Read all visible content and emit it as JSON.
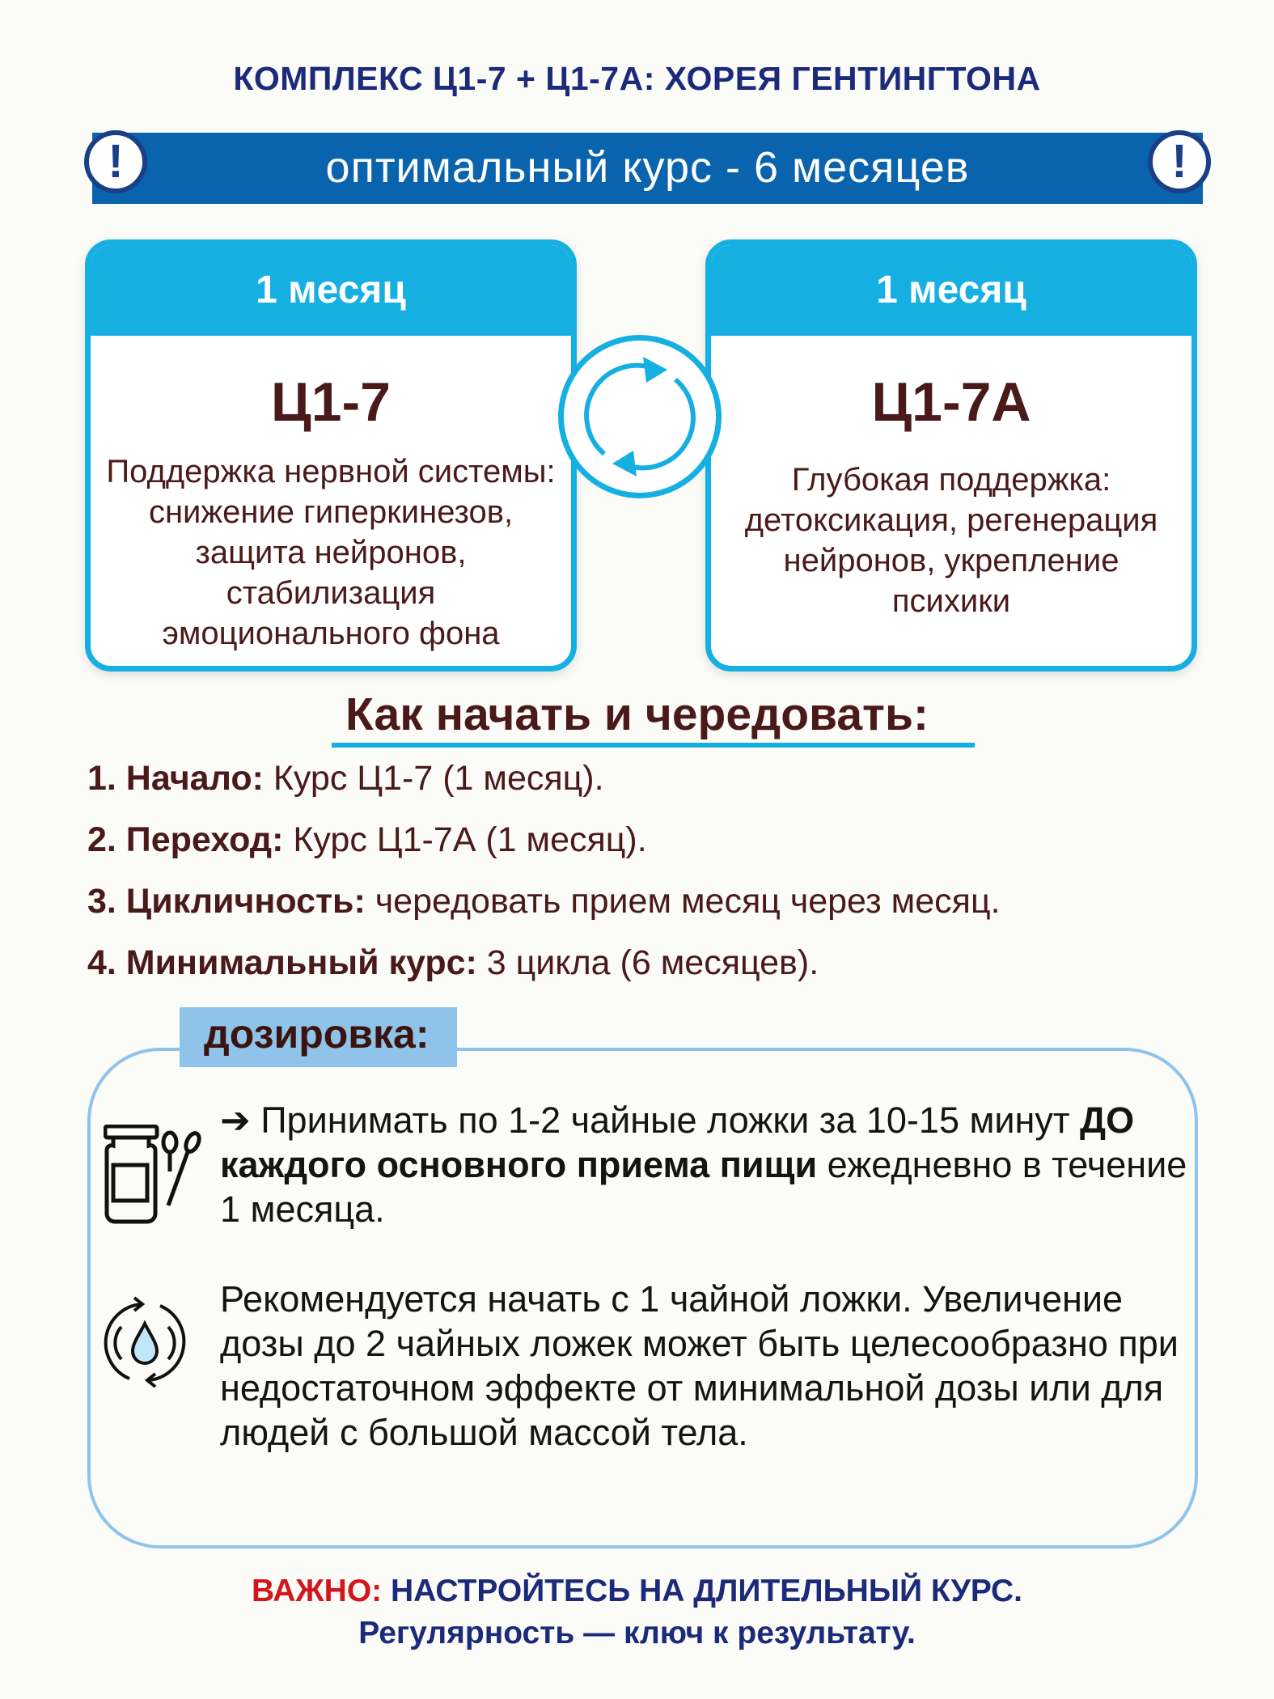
{
  "title": "КОМПЛЕКС Ц1-7 + Ц1-7А: ХОРЕЯ ГЕНТИНГТОНА",
  "banner": {
    "text": "оптимальный курс - 6 месяцев",
    "icon": "exclamation-circle-icon",
    "color": "#0a64ad"
  },
  "cards": [
    {
      "duration": "1 месяц",
      "name": "Ц1-7",
      "description": "Поддержка нервной системы: снижение гиперкинезов, защита нейронов, стабилизация эмоционального фона"
    },
    {
      "duration": "1 месяц",
      "name": "Ц1-7А",
      "description": "Глубокая поддержка: детоксикация, регенерация нейронов, укрепление психики"
    }
  ],
  "cycle_icon": "alternate-cycle-arrows-icon",
  "how": {
    "heading": "Как начать и чередовать:",
    "steps": [
      {
        "label": "1. Начало:",
        "text": " Курс Ц1-7 (1 месяц)."
      },
      {
        "label": "2. Переход:",
        "text": " Курс Ц1-7А (1 месяц)."
      },
      {
        "label": "3. Цикличность:",
        "text": " чередовать прием месяц через месяц."
      },
      {
        "label": "4. Минимальный курс:",
        "text": " 3 цикла (6 месяцев)."
      }
    ]
  },
  "dosage": {
    "label": "дозировка:",
    "instruction_pre": "➔ Принимать по 1-2 чайные ложки за 10-15 минут ",
    "instruction_bold": "ДО каждого основного приема пищи",
    "instruction_post": " ежедневно в течение 1 месяца.",
    "recommendation": "Рекомендуется начать с 1 чайной ложки. Увеличение дозы до 2 чайных ложек может быть целесообразно при недостаточном эффекте от минимальной дозы или для людей с большой массой тела."
  },
  "footer": {
    "important": "ВАЖНО:",
    "line1": " НАСТРОЙТЕСЬ НА ДЛИТЕЛЬНЫЙ КУРС.",
    "line2": "Регулярность — ключ к результату."
  },
  "colors": {
    "navy": "#1c2a7a",
    "cyan": "#15afe2",
    "light_blue": "#8fc3ea",
    "red": "#d4151c",
    "brown": "#4a1a1a"
  }
}
